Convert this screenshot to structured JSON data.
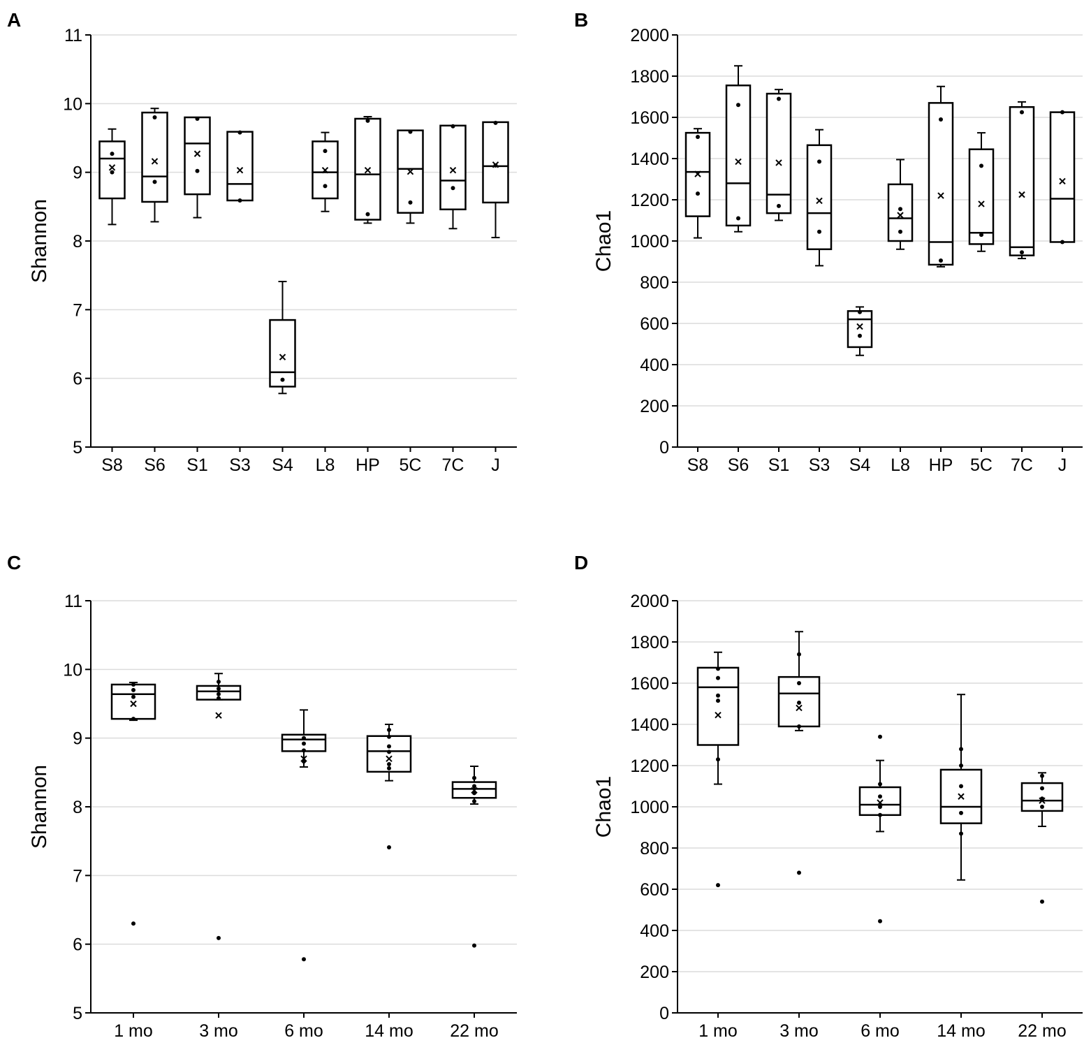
{
  "colors": {
    "ink": "#000000",
    "grid": "#dcdcdc",
    "background": "#ffffff"
  },
  "chart_data": [
    {
      "panel": "A",
      "type": "box",
      "ylabel": "Shannon",
      "xlabel": "",
      "ylim": [
        5,
        11
      ],
      "yticks": [
        "5",
        "6",
        "7",
        "8",
        "9",
        "10",
        "11"
      ],
      "grid": true,
      "categories": [
        "S8",
        "S6",
        "S1",
        "S3",
        "S4",
        "L8",
        "HP",
        "5C",
        "7C",
        "J"
      ],
      "boxes": [
        {
          "q1": 8.62,
          "median": 9.2,
          "q3": 9.45,
          "wlow": 8.24,
          "whigh": 9.63,
          "mean": 9.07,
          "points": [
            9.27,
            9.0
          ]
        },
        {
          "q1": 8.57,
          "median": 8.94,
          "q3": 9.87,
          "wlow": 8.28,
          "whigh": 9.93,
          "mean": 9.16,
          "points": [
            9.8,
            8.86
          ]
        },
        {
          "q1": 8.68,
          "median": 9.42,
          "q3": 9.8,
          "wlow": 8.34,
          "whigh": 9.8,
          "mean": 9.27,
          "points": [
            9.78,
            9.02
          ]
        },
        {
          "q1": 8.59,
          "median": 8.83,
          "q3": 9.59,
          "wlow": 8.59,
          "whigh": 9.59,
          "mean": 9.03,
          "points": [
            9.58,
            8.59
          ]
        },
        {
          "q1": 5.88,
          "median": 6.09,
          "q3": 6.85,
          "wlow": 5.78,
          "whigh": 7.41,
          "mean": 6.31,
          "points": [
            5.98
          ]
        },
        {
          "q1": 8.62,
          "median": 9.0,
          "q3": 9.45,
          "wlow": 8.43,
          "whigh": 9.58,
          "mean": 9.03,
          "points": [
            9.31,
            8.8
          ]
        },
        {
          "q1": 8.31,
          "median": 8.97,
          "q3": 9.78,
          "wlow": 8.26,
          "whigh": 9.81,
          "mean": 9.03,
          "points": [
            9.75,
            8.39
          ]
        },
        {
          "q1": 8.41,
          "median": 9.05,
          "q3": 9.61,
          "wlow": 8.26,
          "whigh": 9.61,
          "mean": 9.01,
          "points": [
            9.59,
            8.56
          ]
        },
        {
          "q1": 8.46,
          "median": 8.88,
          "q3": 9.68,
          "wlow": 8.18,
          "whigh": 9.68,
          "mean": 9.03,
          "points": [
            9.67,
            8.77
          ]
        },
        {
          "q1": 8.56,
          "median": 9.09,
          "q3": 9.73,
          "wlow": 8.05,
          "whigh": 9.73,
          "mean": 9.11,
          "points": [
            9.72,
            9.1
          ]
        }
      ],
      "outliers": []
    },
    {
      "panel": "B",
      "type": "box",
      "ylabel": "Chao1",
      "xlabel": "",
      "ylim": [
        0,
        2000
      ],
      "yticks": [
        "0",
        "200",
        "400",
        "600",
        "800",
        "1000",
        "1200",
        "1400",
        "1600",
        "1800",
        "2000"
      ],
      "grid": true,
      "categories": [
        "S8",
        "S6",
        "S1",
        "S3",
        "S4",
        "L8",
        "HP",
        "5C",
        "7C",
        "J"
      ],
      "boxes": [
        {
          "q1": 1120,
          "median": 1335,
          "q3": 1525,
          "wlow": 1015,
          "whigh": 1545,
          "mean": 1325,
          "points": [
            1505,
            1230
          ]
        },
        {
          "q1": 1075,
          "median": 1280,
          "q3": 1755,
          "wlow": 1045,
          "whigh": 1850,
          "mean": 1385,
          "points": [
            1660,
            1110
          ]
        },
        {
          "q1": 1135,
          "median": 1225,
          "q3": 1715,
          "wlow": 1100,
          "whigh": 1735,
          "mean": 1380,
          "points": [
            1690,
            1170
          ]
        },
        {
          "q1": 960,
          "median": 1135,
          "q3": 1465,
          "wlow": 880,
          "whigh": 1540,
          "mean": 1195,
          "points": [
            1385,
            1045
          ]
        },
        {
          "q1": 485,
          "median": 620,
          "q3": 660,
          "wlow": 445,
          "whigh": 680,
          "mean": 585,
          "points": [
            655,
            540
          ]
        },
        {
          "q1": 1000,
          "median": 1110,
          "q3": 1275,
          "wlow": 960,
          "whigh": 1395,
          "mean": 1125,
          "points": [
            1155,
            1045
          ]
        },
        {
          "q1": 885,
          "median": 995,
          "q3": 1670,
          "wlow": 875,
          "whigh": 1750,
          "mean": 1220,
          "points": [
            1590,
            905
          ]
        },
        {
          "q1": 985,
          "median": 1040,
          "q3": 1445,
          "wlow": 950,
          "whigh": 1525,
          "mean": 1180,
          "points": [
            1365,
            1030
          ]
        },
        {
          "q1": 930,
          "median": 970,
          "q3": 1650,
          "wlow": 915,
          "whigh": 1675,
          "mean": 1225,
          "points": [
            1625,
            945
          ]
        },
        {
          "q1": 995,
          "median": 1205,
          "q3": 1625,
          "wlow": 995,
          "whigh": 1625,
          "mean": 1290,
          "points": [
            1625,
            995
          ]
        }
      ],
      "outliers": []
    },
    {
      "panel": "C",
      "type": "box",
      "ylabel": "Shannon",
      "xlabel": "",
      "ylim": [
        5,
        11
      ],
      "yticks": [
        "5",
        "6",
        "7",
        "8",
        "9",
        "10",
        "11"
      ],
      "grid": true,
      "categories": [
        "1 mo",
        "3 mo",
        "6 mo",
        "14 mo",
        "22 mo"
      ],
      "boxes": [
        {
          "q1": 9.28,
          "median": 9.64,
          "q3": 9.78,
          "wlow": 9.26,
          "whigh": 9.81,
          "mean": 9.5,
          "points": [
            9.78,
            9.7,
            9.6,
            9.28
          ]
        },
        {
          "q1": 9.56,
          "median": 9.68,
          "q3": 9.76,
          "wlow": 9.56,
          "whigh": 9.94,
          "mean": 9.33,
          "points": [
            9.82,
            9.72,
            9.64,
            9.58
          ]
        },
        {
          "q1": 8.81,
          "median": 8.98,
          "q3": 9.05,
          "wlow": 8.58,
          "whigh": 9.41,
          "mean": 8.7,
          "points": [
            9.0,
            8.92,
            8.82,
            8.66
          ]
        },
        {
          "q1": 8.51,
          "median": 8.81,
          "q3": 9.03,
          "wlow": 8.38,
          "whigh": 9.2,
          "mean": 8.7,
          "points": [
            9.12,
            9.02,
            8.88,
            8.8,
            8.62,
            8.56
          ]
        },
        {
          "q1": 8.13,
          "median": 8.26,
          "q3": 8.36,
          "wlow": 8.04,
          "whigh": 8.59,
          "mean": 8.24,
          "points": [
            8.42,
            8.3,
            8.2,
            8.08
          ]
        }
      ],
      "outliers": [
        {
          "category": "1 mo",
          "value": 6.3
        },
        {
          "category": "3 mo",
          "value": 6.09
        },
        {
          "category": "6 mo",
          "value": 5.78
        },
        {
          "category": "14 mo",
          "value": 7.41
        },
        {
          "category": "22 mo",
          "value": 5.98
        }
      ]
    },
    {
      "panel": "D",
      "type": "box",
      "ylabel": "Chao1",
      "xlabel": "",
      "ylim": [
        0,
        2000
      ],
      "yticks": [
        "0",
        "200",
        "400",
        "600",
        "800",
        "1000",
        "1200",
        "1400",
        "1600",
        "1800",
        "2000"
      ],
      "grid": true,
      "categories": [
        "1 mo",
        "3 mo",
        "6 mo",
        "14 mo",
        "22 mo"
      ],
      "boxes": [
        {
          "q1": 1300,
          "median": 1580,
          "q3": 1675,
          "wlow": 1110,
          "whigh": 1750,
          "mean": 1445,
          "points": [
            1670,
            1625,
            1540,
            1515,
            1230
          ]
        },
        {
          "q1": 1390,
          "median": 1550,
          "q3": 1630,
          "wlow": 1370,
          "whigh": 1850,
          "mean": 1480,
          "points": [
            1740,
            1600,
            1505,
            1390
          ]
        },
        {
          "q1": 960,
          "median": 1010,
          "q3": 1095,
          "wlow": 880,
          "whigh": 1225,
          "mean": 1020,
          "points": [
            1110,
            1050,
            1000,
            960
          ]
        },
        {
          "q1": 920,
          "median": 1000,
          "q3": 1180,
          "wlow": 645,
          "whigh": 1545,
          "mean": 1050,
          "points": [
            1280,
            1200,
            1100,
            970,
            870
          ]
        },
        {
          "q1": 980,
          "median": 1030,
          "q3": 1115,
          "wlow": 905,
          "whigh": 1165,
          "mean": 1030,
          "points": [
            1150,
            1090,
            1040,
            1000
          ]
        }
      ],
      "outliers": [
        {
          "category": "1 mo",
          "value": 620
        },
        {
          "category": "3 mo",
          "value": 680
        },
        {
          "category": "6 mo",
          "value": 1340
        },
        {
          "category": "6 mo",
          "value": 445
        },
        {
          "category": "22 mo",
          "value": 540
        }
      ]
    }
  ]
}
